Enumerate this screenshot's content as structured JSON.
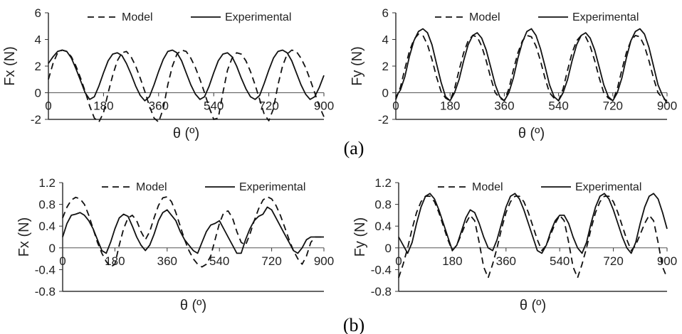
{
  "figure": {
    "panel_labels": [
      "(a)",
      "(b)"
    ]
  },
  "chart_data": [
    {
      "type": "line",
      "panel": "(a)",
      "xlabel": "θ (º)",
      "ylabel": "Fx (N)",
      "xlim": [
        0,
        900
      ],
      "ylim": [
        -2,
        6
      ],
      "xticks": [
        "0",
        "180",
        "360",
        "540",
        "720",
        "900"
      ],
      "yticks": [
        "-2",
        "0",
        "2",
        "4",
        "6"
      ],
      "legend": "top",
      "series": [
        {
          "name": "Model",
          "style": "dashed",
          "x": [
            0,
            15,
            30,
            45,
            60,
            75,
            90,
            105,
            120,
            135,
            150,
            165,
            180,
            195,
            210,
            225,
            240,
            255,
            270,
            285,
            300,
            315,
            330,
            345,
            360,
            375,
            390,
            405,
            420,
            435,
            450,
            465,
            480,
            495,
            510,
            525,
            540,
            555,
            570,
            585,
            600,
            615,
            630,
            645,
            660,
            675,
            690,
            705,
            720,
            735,
            750,
            765,
            780,
            795,
            810,
            825,
            840,
            855,
            870,
            885,
            900
          ],
          "y": [
            1,
            2.2,
            3,
            3.2,
            3.1,
            2.7,
            2,
            1.1,
            0.1,
            -1,
            -1.9,
            -2.2,
            -1.5,
            0,
            1.3,
            2.4,
            3,
            3.1,
            2.7,
            2,
            1.1,
            0.1,
            -1,
            -1.9,
            -2.2,
            -1.2,
            0.6,
            2,
            2.9,
            3.2,
            3.1,
            2.6,
            1.9,
            1,
            0,
            -1.1,
            -2,
            -1.9,
            0,
            1.7,
            2.6,
            3,
            2.9,
            2.4,
            1.6,
            0.6,
            -0.5,
            -1.6,
            -2.1,
            -1.2,
            0.6,
            2,
            2.9,
            3.2,
            3.1,
            2.6,
            1.9,
            1,
            0,
            -1,
            -1.8
          ]
        },
        {
          "name": "Experimental",
          "style": "solid",
          "x": [
            0,
            15,
            30,
            45,
            60,
            75,
            90,
            105,
            120,
            135,
            150,
            165,
            180,
            195,
            210,
            225,
            240,
            255,
            270,
            285,
            300,
            315,
            330,
            345,
            360,
            375,
            390,
            405,
            420,
            435,
            450,
            465,
            480,
            495,
            510,
            525,
            540,
            555,
            570,
            585,
            600,
            615,
            630,
            645,
            660,
            675,
            690,
            705,
            720,
            735,
            750,
            765,
            780,
            795,
            810,
            825,
            840,
            855,
            870,
            885,
            900
          ],
          "y": [
            2.2,
            2.7,
            3.1,
            3.2,
            3.1,
            2.6,
            1.8,
            0.9,
            0,
            -0.5,
            -0.3,
            0.5,
            1.5,
            2.4,
            2.9,
            3,
            2.8,
            2.2,
            1.4,
            0.5,
            -0.2,
            -0.6,
            -0.3,
            0.6,
            1.6,
            2.5,
            3.1,
            3.2,
            3,
            2.4,
            1.5,
            0.6,
            -0.1,
            -0.5,
            -0.3,
            0.5,
            1.5,
            2.4,
            2.9,
            3,
            2.7,
            2,
            1.1,
            0.3,
            -0.3,
            -0.5,
            -0.2,
            0.7,
            1.7,
            2.6,
            3.1,
            3.2,
            3,
            2.4,
            1.5,
            0.6,
            -0.1,
            -0.5,
            -0.3,
            0.4,
            1.3
          ]
        }
      ]
    },
    {
      "type": "line",
      "panel": "(a)",
      "xlabel": "θ (º)",
      "ylabel": "Fy (N)",
      "xlim": [
        0,
        900
      ],
      "ylim": [
        -2,
        6
      ],
      "xticks": [
        "0",
        "180",
        "360",
        "540",
        "720",
        "900"
      ],
      "yticks": [
        "-2",
        "0",
        "2",
        "4",
        "6"
      ],
      "legend": "top",
      "series": [
        {
          "name": "Model",
          "style": "dashed",
          "x": [
            0,
            15,
            30,
            45,
            60,
            75,
            90,
            105,
            120,
            135,
            150,
            165,
            180,
            195,
            210,
            225,
            240,
            255,
            270,
            285,
            300,
            315,
            330,
            345,
            360,
            375,
            390,
            405,
            420,
            435,
            450,
            465,
            480,
            495,
            510,
            525,
            540,
            555,
            570,
            585,
            600,
            615,
            630,
            645,
            660,
            675,
            690,
            705,
            720,
            735,
            750,
            765,
            780,
            795,
            810,
            825,
            840,
            855,
            870,
            885,
            900
          ],
          "y": [
            -0.5,
            0.4,
            1.8,
            3.1,
            4,
            4.4,
            4.3,
            3.6,
            2.5,
            1.2,
            0.1,
            -0.4,
            -0.6,
            0.3,
            1.7,
            3,
            3.9,
            4.3,
            4.2,
            3.5,
            2.4,
            1.1,
            0,
            -0.4,
            -0.6,
            0.3,
            1.7,
            3,
            3.9,
            4.3,
            4.2,
            3.5,
            2.4,
            1.1,
            0,
            -0.4,
            -0.6,
            0.3,
            1.7,
            3,
            3.9,
            4.3,
            4.2,
            3.5,
            2.4,
            1.1,
            0,
            -0.4,
            -0.6,
            0.3,
            1.7,
            3,
            3.9,
            4.3,
            4.2,
            3.5,
            2.4,
            1.1,
            0,
            -0.4,
            -0.6
          ]
        },
        {
          "name": "Experimental",
          "style": "solid",
          "x": [
            0,
            15,
            30,
            45,
            60,
            75,
            90,
            105,
            120,
            135,
            150,
            165,
            180,
            195,
            210,
            225,
            240,
            255,
            270,
            285,
            300,
            315,
            330,
            345,
            360,
            375,
            390,
            405,
            420,
            435,
            450,
            465,
            480,
            495,
            510,
            525,
            540,
            555,
            570,
            585,
            600,
            615,
            630,
            645,
            660,
            675,
            690,
            705,
            720,
            735,
            750,
            765,
            780,
            795,
            810,
            825,
            840,
            855,
            870,
            885,
            900
          ],
          "y": [
            -0.3,
            0.2,
            1.2,
            2.7,
            3.9,
            4.6,
            4.8,
            4.5,
            3.6,
            2.2,
            0.8,
            -0.3,
            -0.6,
            0,
            1,
            2.4,
            3.6,
            4.3,
            4.5,
            4.1,
            3.2,
            1.9,
            0.6,
            -0.3,
            -0.6,
            0,
            1.1,
            2.6,
            3.8,
            4.6,
            4.8,
            4.3,
            3.3,
            2,
            0.6,
            -0.3,
            -0.6,
            0,
            1,
            2.4,
            3.6,
            4.3,
            4.5,
            4.1,
            3.2,
            1.9,
            0.6,
            -0.3,
            -0.6,
            0,
            1.1,
            2.6,
            3.9,
            4.6,
            4.8,
            4.4,
            3.4,
            2,
            0.6,
            -0.2,
            -0.8
          ]
        }
      ]
    },
    {
      "type": "line",
      "panel": "(b)",
      "xlabel": "θ (º)",
      "ylabel": "Fx (N)",
      "xlim": [
        0,
        900
      ],
      "ylim": [
        -0.8,
        1.2
      ],
      "xticks": [
        "0",
        "180",
        "360",
        "540",
        "720",
        "900"
      ],
      "yticks": [
        "-0.8",
        "-0.4",
        "0",
        "0.4",
        "0.8",
        "1.2"
      ],
      "legend": "top",
      "series": [
        {
          "name": "Model",
          "style": "dashed",
          "x": [
            0,
            15,
            30,
            45,
            60,
            75,
            90,
            105,
            120,
            135,
            150,
            165,
            180,
            195,
            210,
            225,
            240,
            255,
            270,
            285,
            300,
            315,
            330,
            345,
            360,
            375,
            390,
            405,
            420,
            435,
            450,
            465,
            480,
            495,
            510,
            525,
            540,
            555,
            570,
            585,
            600,
            615,
            630,
            645,
            660,
            675,
            690,
            705,
            720,
            735,
            750,
            765,
            780,
            795,
            810,
            825,
            840,
            855,
            870,
            885,
            900
          ],
          "y": [
            0.55,
            0.75,
            0.88,
            0.93,
            0.9,
            0.8,
            0.6,
            0.35,
            0.1,
            -0.1,
            -0.25,
            -0.35,
            -0.3,
            0.05,
            0.35,
            0.55,
            0.6,
            0.5,
            0.3,
            0.15,
            0.3,
            0.55,
            0.78,
            0.92,
            0.94,
            0.85,
            0.65,
            0.4,
            0.15,
            -0.05,
            -0.2,
            -0.3,
            -0.35,
            -0.3,
            -0.15,
            0.15,
            0.45,
            0.65,
            0.68,
            0.55,
            0.3,
            0.1,
            0.05,
            0.25,
            0.5,
            0.72,
            0.88,
            0.94,
            0.9,
            0.78,
            0.6,
            0.38,
            0.15,
            -0.05,
            -0.2,
            -0.3,
            -0.15,
            0.1,
            0.2,
            0.2,
            0.2
          ]
        },
        {
          "name": "Experimental",
          "style": "solid",
          "x": [
            0,
            15,
            30,
            45,
            60,
            75,
            90,
            105,
            120,
            135,
            150,
            165,
            180,
            195,
            210,
            225,
            240,
            255,
            270,
            285,
            300,
            315,
            330,
            345,
            360,
            375,
            390,
            405,
            420,
            435,
            450,
            465,
            480,
            495,
            510,
            525,
            540,
            555,
            570,
            585,
            600,
            615,
            630,
            645,
            660,
            675,
            690,
            705,
            720,
            735,
            750,
            765,
            780,
            795,
            810,
            825,
            840,
            855,
            870,
            885,
            900
          ],
          "y": [
            0.2,
            0.45,
            0.6,
            0.62,
            0.65,
            0.6,
            0.5,
            0.35,
            0.15,
            -0.05,
            -0.1,
            0.1,
            0.35,
            0.55,
            0.62,
            0.58,
            0.4,
            0.2,
            0.05,
            -0.05,
            0.05,
            0.25,
            0.5,
            0.65,
            0.7,
            0.6,
            0.5,
            0.3,
            0.15,
            0.05,
            -0.05,
            -0.1,
            0.1,
            0.3,
            0.42,
            0.45,
            0.5,
            0.35,
            0.2,
            0.05,
            -0.1,
            -0.1,
            0.15,
            0.35,
            0.5,
            0.58,
            0.62,
            0.75,
            0.7,
            0.55,
            0.4,
            0.25,
            0.1,
            -0.05,
            -0.1,
            0,
            0.15,
            0.2,
            0.2,
            0.2,
            0.2
          ]
        }
      ]
    },
    {
      "type": "line",
      "panel": "(b)",
      "xlabel": "θ (º)",
      "ylabel": "Fy (N)",
      "xlim": [
        0,
        900
      ],
      "ylim": [
        -0.8,
        1.2
      ],
      "xticks": [
        "0",
        "180",
        "360",
        "540",
        "720",
        "900"
      ],
      "yticks": [
        "-0.8",
        "-0.4",
        "0",
        "0.4",
        "0.8",
        "1.2"
      ],
      "legend": "top",
      "series": [
        {
          "name": "Model",
          "style": "dashed",
          "x": [
            0,
            15,
            30,
            45,
            60,
            75,
            90,
            105,
            120,
            135,
            150,
            165,
            180,
            195,
            210,
            225,
            240,
            255,
            270,
            285,
            300,
            315,
            330,
            345,
            360,
            375,
            390,
            405,
            420,
            435,
            450,
            465,
            480,
            495,
            510,
            525,
            540,
            555,
            570,
            585,
            600,
            615,
            630,
            645,
            660,
            675,
            690,
            705,
            720,
            735,
            750,
            765,
            780,
            795,
            810,
            825,
            840,
            855,
            870,
            885,
            900
          ],
          "y": [
            -0.55,
            -0.3,
            0,
            0.35,
            0.65,
            0.85,
            0.95,
            0.95,
            0.85,
            0.65,
            0.4,
            0.15,
            -0.05,
            0.05,
            0.25,
            0.45,
            0.6,
            0.5,
            0.1,
            -0.35,
            -0.55,
            -0.3,
            0,
            0.35,
            0.65,
            0.85,
            0.95,
            0.95,
            0.85,
            0.65,
            0.4,
            0.15,
            -0.05,
            0.05,
            0.25,
            0.45,
            0.6,
            0.5,
            0.1,
            -0.35,
            -0.55,
            -0.3,
            0,
            0.35,
            0.65,
            0.85,
            0.95,
            0.95,
            0.85,
            0.65,
            0.4,
            0.15,
            -0.05,
            0.05,
            0.25,
            0.45,
            0.6,
            0.5,
            0.1,
            -0.35,
            -0.55
          ]
        },
        {
          "name": "Experimental",
          "style": "solid",
          "x": [
            0,
            15,
            30,
            45,
            60,
            75,
            90,
            105,
            120,
            135,
            150,
            165,
            180,
            195,
            210,
            225,
            240,
            255,
            270,
            285,
            300,
            315,
            330,
            345,
            360,
            375,
            390,
            405,
            420,
            435,
            450,
            465,
            480,
            495,
            510,
            525,
            540,
            555,
            570,
            585,
            600,
            615,
            630,
            645,
            660,
            675,
            690,
            705,
            720,
            735,
            750,
            765,
            780,
            795,
            810,
            825,
            840,
            855,
            870,
            885,
            900
          ],
          "y": [
            0.2,
            0.05,
            -0.1,
            0.1,
            0.45,
            0.75,
            0.95,
            1,
            0.9,
            0.7,
            0.45,
            0.2,
            -0.05,
            0.05,
            0.3,
            0.55,
            0.7,
            0.65,
            0.45,
            0.2,
            0,
            -0.05,
            0.15,
            0.45,
            0.75,
            0.95,
            1,
            0.9,
            0.7,
            0.45,
            0.2,
            -0.05,
            -0.1,
            0.05,
            0.3,
            0.5,
            0.6,
            0.6,
            0.45,
            0.2,
            0,
            -0.1,
            0.1,
            0.45,
            0.75,
            0.95,
            1,
            0.9,
            0.7,
            0.45,
            0.2,
            0,
            -0.1,
            0.1,
            0.45,
            0.75,
            0.95,
            1,
            0.9,
            0.65,
            0.35
          ]
        }
      ]
    }
  ]
}
